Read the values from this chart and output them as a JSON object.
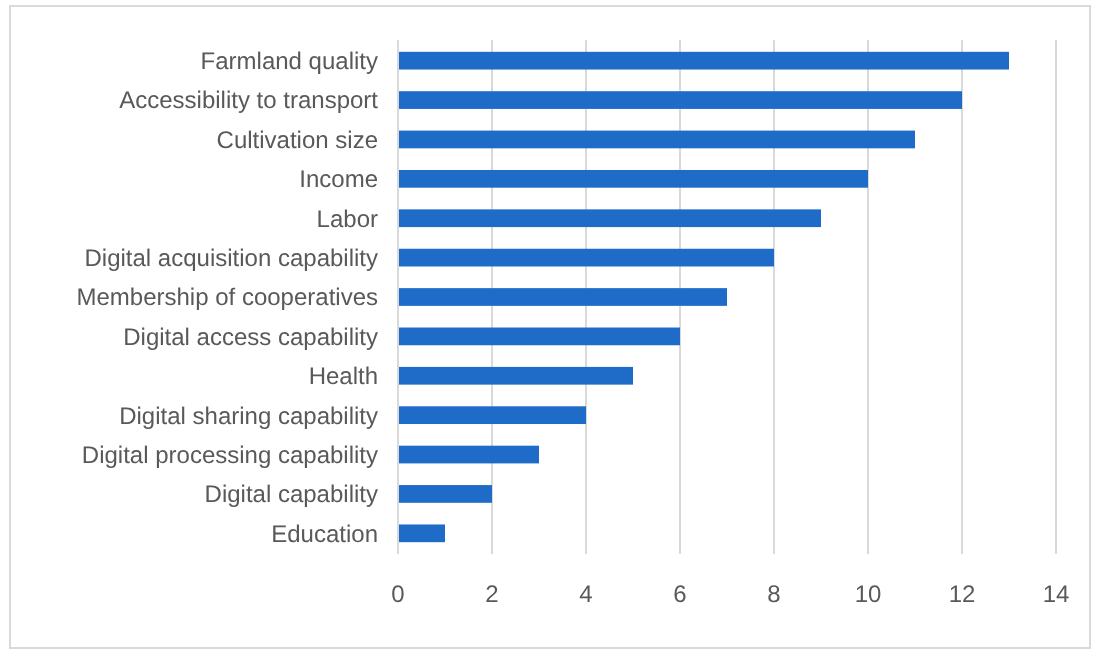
{
  "chart_data": {
    "type": "bar",
    "orientation": "horizontal",
    "categories": [
      "Farmland quality",
      "Accessibility to transport",
      "Cultivation size",
      "Income",
      "Labor",
      "Digital acquisition capability",
      "Membership of cooperatives",
      "Digital access capability",
      "Health",
      "Digital sharing capability",
      "Digital processing capability",
      "Digital capability",
      "Education"
    ],
    "values": [
      13,
      12,
      11,
      10,
      9,
      8,
      7,
      6,
      5,
      4,
      3,
      2,
      1
    ],
    "color": "#1f6cc8",
    "xlim": [
      0,
      14
    ],
    "xticks": [
      0,
      2,
      4,
      6,
      8,
      10,
      12,
      14
    ],
    "grid": "x"
  }
}
